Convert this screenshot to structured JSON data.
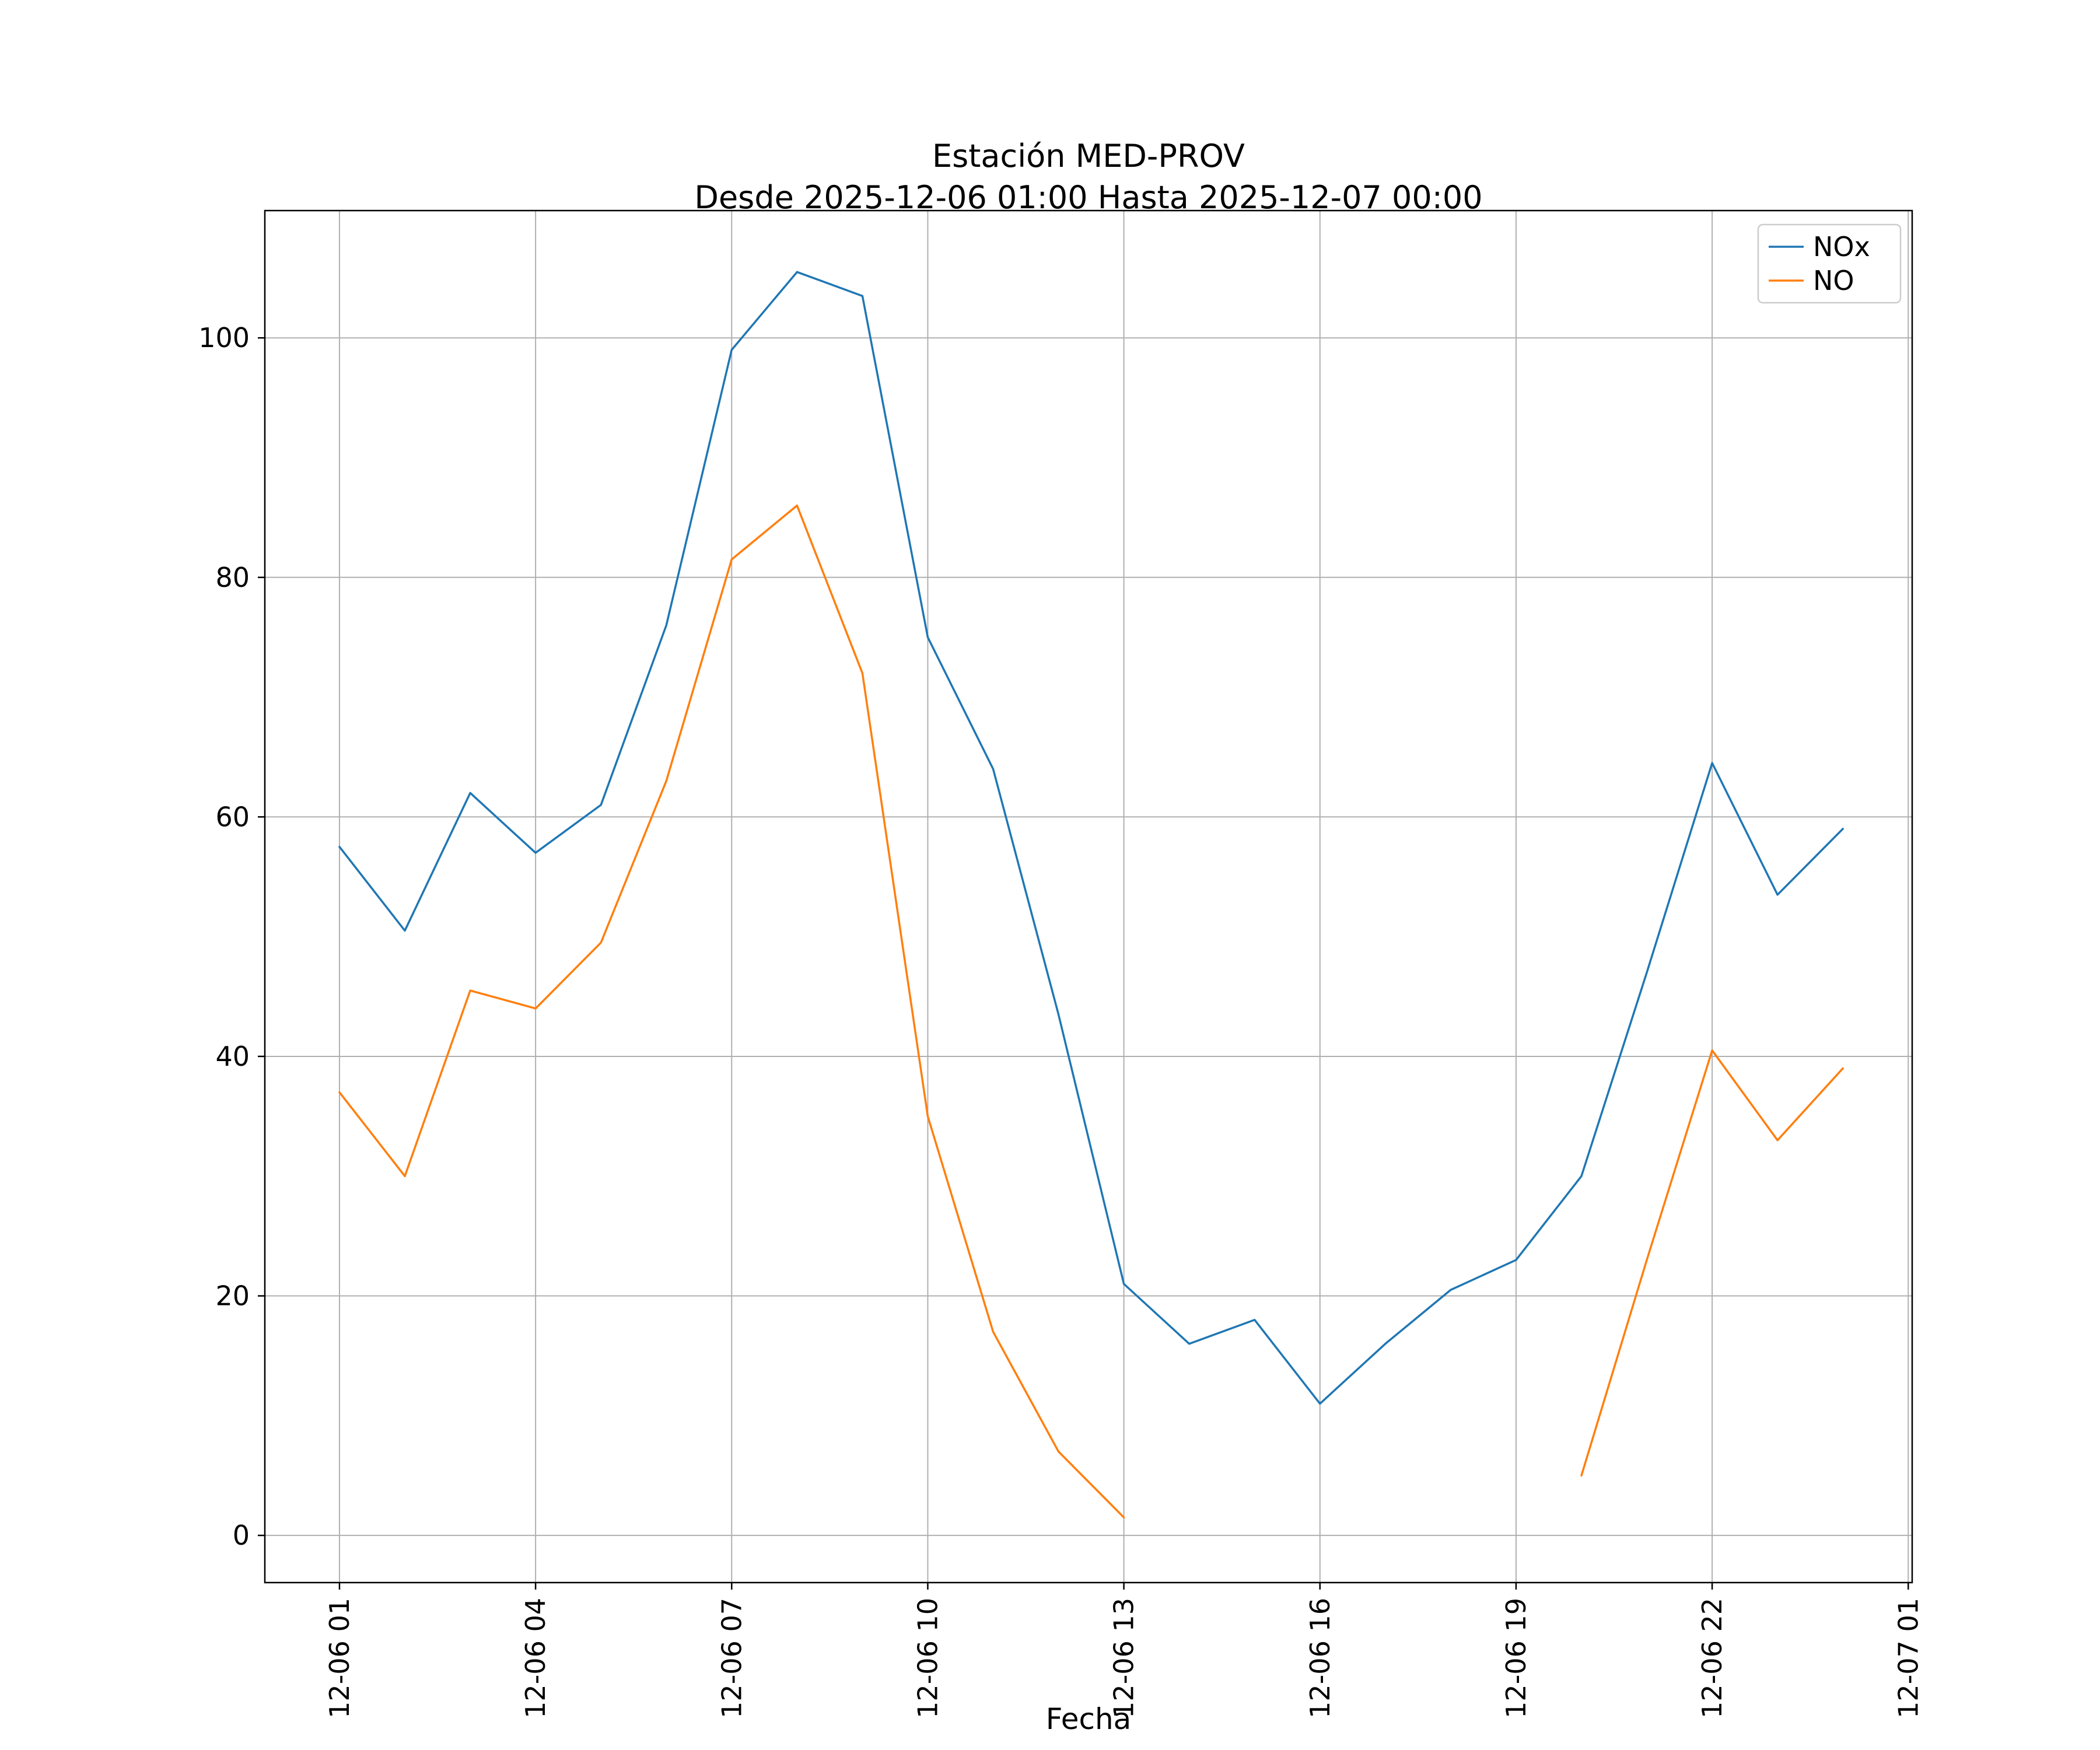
{
  "chart_data": {
    "type": "line",
    "title_line1": "Estación MED-PROV",
    "title_line2": "Desde 2025-12-06 01:00 Hasta 2025-12-07 00:00",
    "xlabel": "Fecha",
    "ylabel": "",
    "x_start_hour": 1,
    "x_tick_hours": [
      1,
      4,
      7,
      10,
      13,
      16,
      19,
      22,
      25
    ],
    "x_tick_labels": [
      "12-06 01",
      "12-06 04",
      "12-06 07",
      "12-06 10",
      "12-06 13",
      "12-06 16",
      "12-06 19",
      "12-06 22",
      "12-07 01"
    ],
    "y_ticks": [
      0,
      20,
      40,
      60,
      80,
      100
    ],
    "xlim": [
      -0.142,
      25.06
    ],
    "ylim": [
      -3.94,
      110.63
    ],
    "grid": true,
    "grid_color": "#b0b0b0",
    "legend_position": "upper right",
    "series": [
      {
        "name": "NOx",
        "color": "#1f77b4",
        "values": [
          57.5,
          50.5,
          62,
          57,
          61,
          76,
          99,
          105.5,
          103.5,
          75,
          64,
          43.5,
          21,
          16,
          18,
          11,
          16,
          20.5,
          23,
          30,
          47,
          64.5,
          53.5,
          59
        ]
      },
      {
        "name": "NO",
        "color": "#ff7f0e",
        "values": [
          37,
          30,
          45.5,
          44,
          49.5,
          63,
          81.5,
          86,
          72,
          35,
          17,
          7,
          1.5,
          null,
          null,
          null,
          null,
          null,
          null,
          5,
          23,
          40.5,
          33,
          39
        ]
      }
    ]
  }
}
